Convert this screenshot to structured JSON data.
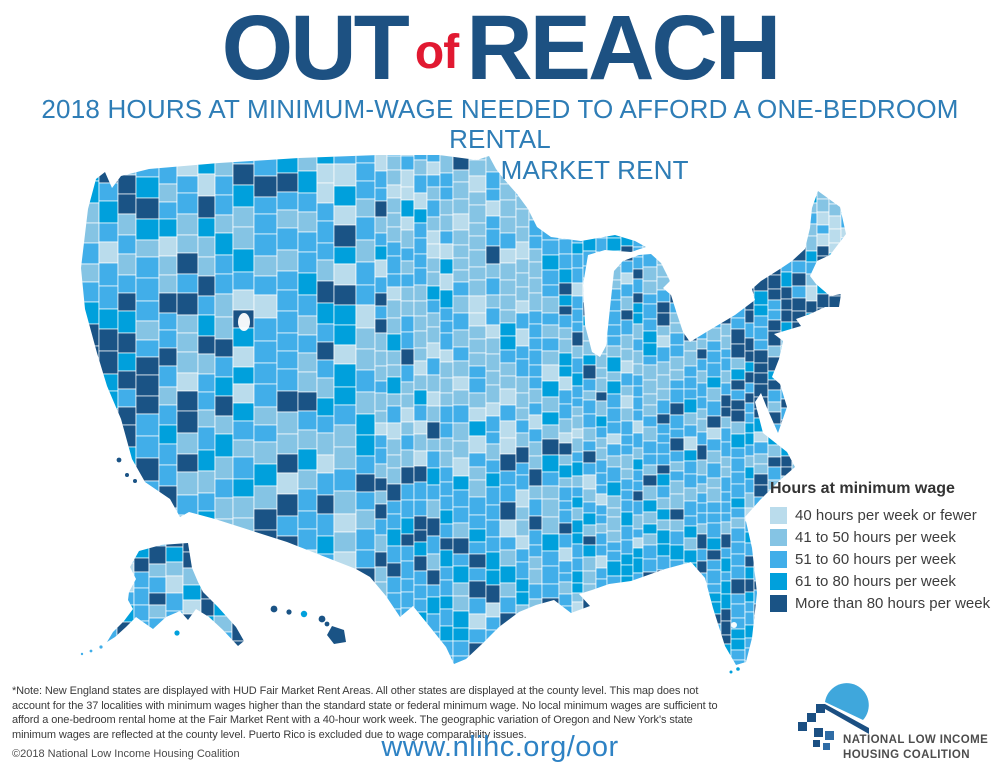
{
  "header": {
    "title_out": "OUT",
    "title_of": "of",
    "title_reach": "REACH",
    "subtitle_line1": "2018 HOURS AT MINIMUM-WAGE NEEDED TO AFFORD A ONE-BEDROOM RENTAL",
    "subtitle_line2": "HOME AT FAIR MARKET RENT"
  },
  "legend": {
    "title": "Hours at minimum wage",
    "items": [
      {
        "label": "40 hours per week or fewer",
        "color": "#BADCEC"
      },
      {
        "label": "41 to 50 hours per week",
        "color": "#85C4E4"
      },
      {
        "label": "51 to 60 hours per week",
        "color": "#41AEE9"
      },
      {
        "label": "61 to 80 hours per week",
        "color": "#00A0DC"
      },
      {
        "label": "More than 80 hours per week",
        "color": "#1A5385"
      }
    ]
  },
  "note": {
    "lines": [
      "*Note: New England states are displayed with HUD Fair Market Rent Areas. All other states are displayed at the county level. This map does not",
      "account for the 37 localities with minimum wages higher than the standard state or federal minimum wage. No local minimum wages are sufficient to",
      "afford a one-bedroom rental home at the Fair Market Rent with a 40-hour work week. The geographic variation of Oregon and New York's state",
      "minimum wages are reflected at the county level.  Puerto Rico is excluded due to wage comparability issues."
    ]
  },
  "footer": {
    "copyright": "©2018 National Low Income Housing Coalition",
    "url": "www.nlihc.org/oor"
  },
  "logo": {
    "line1": "NATIONAL LOW INCOME",
    "line2": "HOUSING COALITION"
  },
  "colors": {
    "title_blue": "#1D5182",
    "accent_red": "#E11931",
    "subtitle_blue": "#2E7DB6",
    "url_blue": "#2E82C4",
    "body_text": "#3A3A3A",
    "logo_dark_blue": "#1B4F82",
    "logo_light_blue": "#3FA7DC"
  }
}
